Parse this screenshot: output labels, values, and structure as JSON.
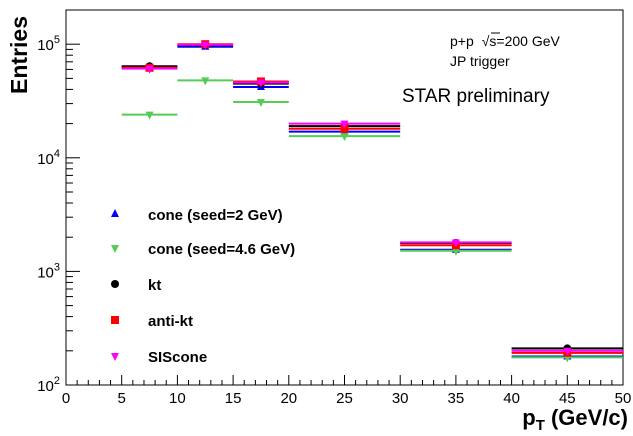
{
  "chart_data": {
    "type": "scatter",
    "xlabel_main": "p",
    "xlabel_sub": "T",
    "xlabel_unit": " (GeV/c)",
    "ylabel": "Entries",
    "xlim": [
      0,
      50
    ],
    "ylim": [
      100,
      200000
    ],
    "yscale": "log",
    "grid": false,
    "legend_position": "left",
    "x_ticks": [
      0,
      5,
      10,
      15,
      20,
      25,
      30,
      35,
      40,
      45,
      50
    ],
    "y_ticks": [
      {
        "value": 100,
        "base": "10",
        "exp": "2"
      },
      {
        "value": 1000,
        "base": "10",
        "exp": "3"
      },
      {
        "value": 10000,
        "base": "10",
        "exp": "4"
      },
      {
        "value": 100000,
        "base": "10",
        "exp": "5"
      }
    ],
    "annotations": {
      "collision_prefix": "p+p",
      "collision_sqrt": "√s=200 GeV",
      "trigger": "JP trigger",
      "label": "STAR preliminary"
    },
    "bins": [
      {
        "x": 7.5,
        "xerr": 2.5
      },
      {
        "x": 12.5,
        "xerr": 2.5
      },
      {
        "x": 17.5,
        "xerr": 2.5
      },
      {
        "x": 25,
        "xerr": 5
      },
      {
        "x": 35,
        "xerr": 5
      },
      {
        "x": 45,
        "xerr": 5
      }
    ],
    "series": [
      {
        "name": "cone (seed=2 GeV)",
        "marker": "triangle-up",
        "color": "#0000ff",
        "values": [
          63000,
          95000,
          42000,
          17000,
          1550,
          178
        ]
      },
      {
        "name": "cone (seed=4.6 GeV)",
        "marker": "triangle-down",
        "color": "#55cc55",
        "values": [
          24000,
          48000,
          31000,
          15500,
          1520,
          175
        ]
      },
      {
        "name": "kt",
        "marker": "circle",
        "color": "#000000",
        "values": [
          64000,
          98000,
          45000,
          19000,
          1780,
          210
        ]
      },
      {
        "name": "anti-kt",
        "marker": "square",
        "color": "#ff0000",
        "values": [
          62000,
          100000,
          47000,
          18000,
          1700,
          192
        ]
      },
      {
        "name": "SIScone",
        "marker": "triangle-down",
        "color": "#ff00ff",
        "values": [
          61000,
          99000,
          46000,
          20000,
          1800,
          200
        ]
      }
    ]
  }
}
